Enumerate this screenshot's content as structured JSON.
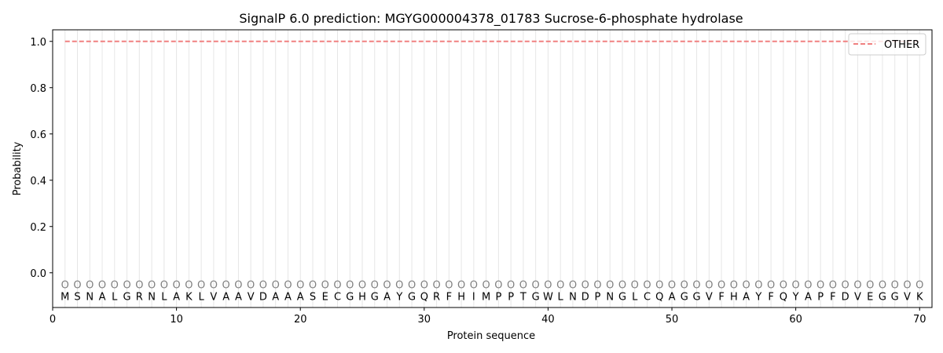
{
  "chart_data": {
    "type": "line",
    "title": "SignalP 6.0 prediction: MGYG000004378_01783 Sucrose-6-phosphate hydrolase",
    "xlabel": "Protein sequence",
    "ylabel": "Probability",
    "xlim": [
      0,
      71
    ],
    "ylim": [
      -0.15,
      1.05
    ],
    "xticks": [
      0,
      10,
      20,
      30,
      40,
      50,
      60,
      70
    ],
    "yticks": [
      0.0,
      0.2,
      0.4,
      0.6,
      0.8,
      1.0
    ],
    "ytick_labels": [
      "0.0",
      "0.2",
      "0.4",
      "0.6",
      "0.8",
      "1.0"
    ],
    "sequence": [
      "M",
      "S",
      "N",
      "A",
      "L",
      "G",
      "R",
      "N",
      "L",
      "A",
      "K",
      "L",
      "V",
      "A",
      "A",
      "V",
      "D",
      "A",
      "A",
      "A",
      "S",
      "E",
      "C",
      "G",
      "H",
      "G",
      "A",
      "Y",
      "G",
      "Q",
      "R",
      "F",
      "H",
      "I",
      "M",
      "P",
      "P",
      "T",
      "G",
      "W",
      "L",
      "N",
      "D",
      "P",
      "N",
      "G",
      "L",
      "C",
      "Q",
      "A",
      "G",
      "G",
      "V",
      "F",
      "H",
      "A",
      "Y",
      "F",
      "Q",
      "Y",
      "A",
      "P",
      "F",
      "D",
      "V",
      "E",
      "G",
      "G",
      "V",
      "K"
    ],
    "position_labels": [
      "O",
      "O",
      "O",
      "O",
      "O",
      "O",
      "O",
      "O",
      "O",
      "O",
      "O",
      "O",
      "O",
      "O",
      "O",
      "O",
      "O",
      "O",
      "O",
      "O",
      "O",
      "O",
      "O",
      "O",
      "O",
      "O",
      "O",
      "O",
      "O",
      "O",
      "O",
      "O",
      "O",
      "O",
      "O",
      "O",
      "O",
      "O",
      "O",
      "O",
      "O",
      "O",
      "O",
      "O",
      "O",
      "O",
      "O",
      "O",
      "O",
      "O",
      "O",
      "O",
      "O",
      "O",
      "O",
      "O",
      "O",
      "O",
      "O",
      "O",
      "O",
      "O",
      "O",
      "O",
      "O",
      "O",
      "O",
      "O",
      "O",
      "O"
    ],
    "series": [
      {
        "name": "OTHER",
        "color": "#f08080",
        "style": "dashed",
        "x_start": 1,
        "x_end": 70,
        "value": 1.0
      }
    ],
    "grid": "vertical lines at each residue",
    "legend": "top-right"
  }
}
